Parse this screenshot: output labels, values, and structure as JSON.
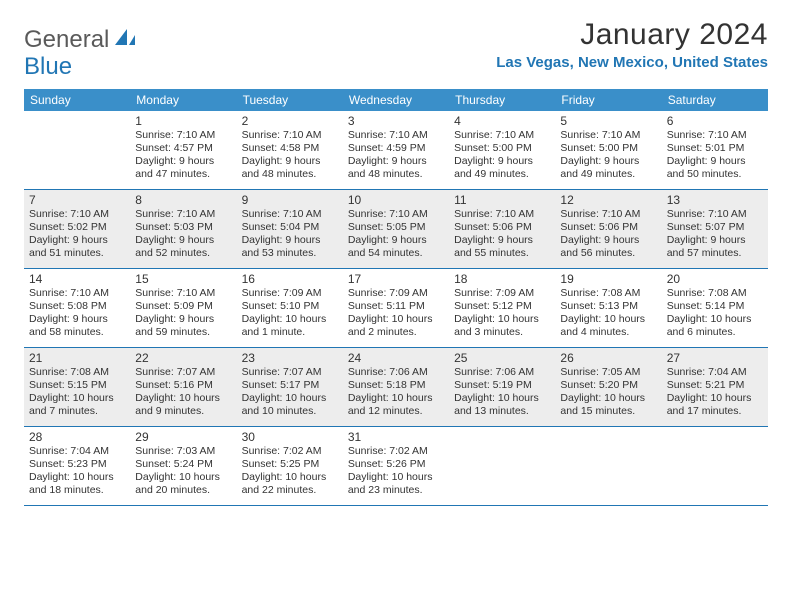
{
  "logo": {
    "text1": "General",
    "text2": "Blue"
  },
  "title": "January 2024",
  "location": "Las Vegas, New Mexico, United States",
  "day_names": [
    "Sunday",
    "Monday",
    "Tuesday",
    "Wednesday",
    "Thursday",
    "Friday",
    "Saturday"
  ],
  "colors": {
    "header_bg": "#3a8fc9",
    "accent": "#2176b4",
    "alt_bg": "#ededed",
    "text": "#333333"
  },
  "weeks": [
    [
      {
        "day": "",
        "alt": false,
        "sunrise": "",
        "sunset": "",
        "daylight": ""
      },
      {
        "day": "1",
        "alt": false,
        "sunrise": "Sunrise: 7:10 AM",
        "sunset": "Sunset: 4:57 PM",
        "daylight": "Daylight: 9 hours and 47 minutes."
      },
      {
        "day": "2",
        "alt": false,
        "sunrise": "Sunrise: 7:10 AM",
        "sunset": "Sunset: 4:58 PM",
        "daylight": "Daylight: 9 hours and 48 minutes."
      },
      {
        "day": "3",
        "alt": false,
        "sunrise": "Sunrise: 7:10 AM",
        "sunset": "Sunset: 4:59 PM",
        "daylight": "Daylight: 9 hours and 48 minutes."
      },
      {
        "day": "4",
        "alt": false,
        "sunrise": "Sunrise: 7:10 AM",
        "sunset": "Sunset: 5:00 PM",
        "daylight": "Daylight: 9 hours and 49 minutes."
      },
      {
        "day": "5",
        "alt": false,
        "sunrise": "Sunrise: 7:10 AM",
        "sunset": "Sunset: 5:00 PM",
        "daylight": "Daylight: 9 hours and 49 minutes."
      },
      {
        "day": "6",
        "alt": false,
        "sunrise": "Sunrise: 7:10 AM",
        "sunset": "Sunset: 5:01 PM",
        "daylight": "Daylight: 9 hours and 50 minutes."
      }
    ],
    [
      {
        "day": "7",
        "alt": true,
        "sunrise": "Sunrise: 7:10 AM",
        "sunset": "Sunset: 5:02 PM",
        "daylight": "Daylight: 9 hours and 51 minutes."
      },
      {
        "day": "8",
        "alt": true,
        "sunrise": "Sunrise: 7:10 AM",
        "sunset": "Sunset: 5:03 PM",
        "daylight": "Daylight: 9 hours and 52 minutes."
      },
      {
        "day": "9",
        "alt": true,
        "sunrise": "Sunrise: 7:10 AM",
        "sunset": "Sunset: 5:04 PM",
        "daylight": "Daylight: 9 hours and 53 minutes."
      },
      {
        "day": "10",
        "alt": true,
        "sunrise": "Sunrise: 7:10 AM",
        "sunset": "Sunset: 5:05 PM",
        "daylight": "Daylight: 9 hours and 54 minutes."
      },
      {
        "day": "11",
        "alt": true,
        "sunrise": "Sunrise: 7:10 AM",
        "sunset": "Sunset: 5:06 PM",
        "daylight": "Daylight: 9 hours and 55 minutes."
      },
      {
        "day": "12",
        "alt": true,
        "sunrise": "Sunrise: 7:10 AM",
        "sunset": "Sunset: 5:06 PM",
        "daylight": "Daylight: 9 hours and 56 minutes."
      },
      {
        "day": "13",
        "alt": true,
        "sunrise": "Sunrise: 7:10 AM",
        "sunset": "Sunset: 5:07 PM",
        "daylight": "Daylight: 9 hours and 57 minutes."
      }
    ],
    [
      {
        "day": "14",
        "alt": false,
        "sunrise": "Sunrise: 7:10 AM",
        "sunset": "Sunset: 5:08 PM",
        "daylight": "Daylight: 9 hours and 58 minutes."
      },
      {
        "day": "15",
        "alt": false,
        "sunrise": "Sunrise: 7:10 AM",
        "sunset": "Sunset: 5:09 PM",
        "daylight": "Daylight: 9 hours and 59 minutes."
      },
      {
        "day": "16",
        "alt": false,
        "sunrise": "Sunrise: 7:09 AM",
        "sunset": "Sunset: 5:10 PM",
        "daylight": "Daylight: 10 hours and 1 minute."
      },
      {
        "day": "17",
        "alt": false,
        "sunrise": "Sunrise: 7:09 AM",
        "sunset": "Sunset: 5:11 PM",
        "daylight": "Daylight: 10 hours and 2 minutes."
      },
      {
        "day": "18",
        "alt": false,
        "sunrise": "Sunrise: 7:09 AM",
        "sunset": "Sunset: 5:12 PM",
        "daylight": "Daylight: 10 hours and 3 minutes."
      },
      {
        "day": "19",
        "alt": false,
        "sunrise": "Sunrise: 7:08 AM",
        "sunset": "Sunset: 5:13 PM",
        "daylight": "Daylight: 10 hours and 4 minutes."
      },
      {
        "day": "20",
        "alt": false,
        "sunrise": "Sunrise: 7:08 AM",
        "sunset": "Sunset: 5:14 PM",
        "daylight": "Daylight: 10 hours and 6 minutes."
      }
    ],
    [
      {
        "day": "21",
        "alt": true,
        "sunrise": "Sunrise: 7:08 AM",
        "sunset": "Sunset: 5:15 PM",
        "daylight": "Daylight: 10 hours and 7 minutes."
      },
      {
        "day": "22",
        "alt": true,
        "sunrise": "Sunrise: 7:07 AM",
        "sunset": "Sunset: 5:16 PM",
        "daylight": "Daylight: 10 hours and 9 minutes."
      },
      {
        "day": "23",
        "alt": true,
        "sunrise": "Sunrise: 7:07 AM",
        "sunset": "Sunset: 5:17 PM",
        "daylight": "Daylight: 10 hours and 10 minutes."
      },
      {
        "day": "24",
        "alt": true,
        "sunrise": "Sunrise: 7:06 AM",
        "sunset": "Sunset: 5:18 PM",
        "daylight": "Daylight: 10 hours and 12 minutes."
      },
      {
        "day": "25",
        "alt": true,
        "sunrise": "Sunrise: 7:06 AM",
        "sunset": "Sunset: 5:19 PM",
        "daylight": "Daylight: 10 hours and 13 minutes."
      },
      {
        "day": "26",
        "alt": true,
        "sunrise": "Sunrise: 7:05 AM",
        "sunset": "Sunset: 5:20 PM",
        "daylight": "Daylight: 10 hours and 15 minutes."
      },
      {
        "day": "27",
        "alt": true,
        "sunrise": "Sunrise: 7:04 AM",
        "sunset": "Sunset: 5:21 PM",
        "daylight": "Daylight: 10 hours and 17 minutes."
      }
    ],
    [
      {
        "day": "28",
        "alt": false,
        "sunrise": "Sunrise: 7:04 AM",
        "sunset": "Sunset: 5:23 PM",
        "daylight": "Daylight: 10 hours and 18 minutes."
      },
      {
        "day": "29",
        "alt": false,
        "sunrise": "Sunrise: 7:03 AM",
        "sunset": "Sunset: 5:24 PM",
        "daylight": "Daylight: 10 hours and 20 minutes."
      },
      {
        "day": "30",
        "alt": false,
        "sunrise": "Sunrise: 7:02 AM",
        "sunset": "Sunset: 5:25 PM",
        "daylight": "Daylight: 10 hours and 22 minutes."
      },
      {
        "day": "31",
        "alt": false,
        "sunrise": "Sunrise: 7:02 AM",
        "sunset": "Sunset: 5:26 PM",
        "daylight": "Daylight: 10 hours and 23 minutes."
      },
      {
        "day": "",
        "alt": false,
        "sunrise": "",
        "sunset": "",
        "daylight": ""
      },
      {
        "day": "",
        "alt": false,
        "sunrise": "",
        "sunset": "",
        "daylight": ""
      },
      {
        "day": "",
        "alt": false,
        "sunrise": "",
        "sunset": "",
        "daylight": ""
      }
    ]
  ]
}
